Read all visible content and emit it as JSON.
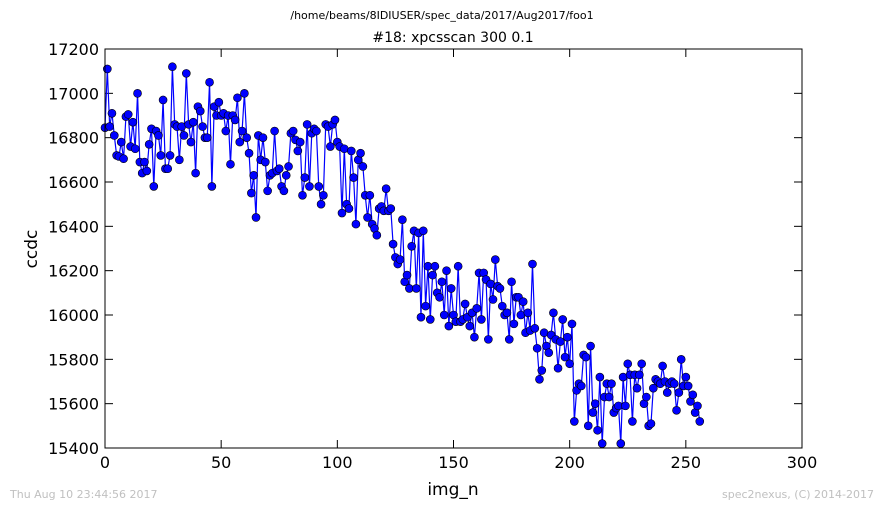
{
  "figure": {
    "suptitle": "/home/beams/8IDIUSER/spec_data/2017/Aug2017/foo1",
    "footer_left": "Thu Aug 10 23:44:56 2017",
    "footer_right": "spec2nexus, (C) 2014-2017",
    "line_color": "#0000ff",
    "marker_color": "#0000ff"
  },
  "chart_data": {
    "type": "line",
    "title": "#18: xpcsscan 300 0.1",
    "xlabel": "img_n",
    "ylabel": "ccdc",
    "xlim": [
      0,
      300
    ],
    "ylim": [
      15400,
      17200
    ],
    "xticks": [
      0,
      50,
      100,
      150,
      200,
      250,
      300
    ],
    "yticks": [
      15400,
      15600,
      15800,
      16000,
      16200,
      16400,
      16600,
      16800,
      17000,
      17200
    ],
    "grid": false,
    "series": [
      {
        "name": "",
        "values": [
          16845,
          17110,
          16850,
          16910,
          16810,
          16720,
          16715,
          16780,
          16705,
          16895,
          16905,
          16760,
          16870,
          16750,
          17000,
          16690,
          16640,
          16690,
          16650,
          16770,
          16840,
          16580,
          16830,
          16810,
          16720,
          16970,
          16660,
          16660,
          16720,
          17120,
          16860,
          16850,
          16700,
          16850,
          16810,
          17090,
          16860,
          16780,
          16870,
          16640,
          16940,
          16920,
          16850,
          16800,
          16800,
          17050,
          16580,
          16940,
          16900,
          16960,
          16900,
          16910,
          16830,
          16900,
          16680,
          16900,
          16880,
          16980,
          16780,
          16830,
          17000,
          16800,
          16730,
          16550,
          16630,
          16440,
          16810,
          16700,
          16800,
          16690,
          16560,
          16630,
          16640,
          16830,
          16650,
          16660,
          16580,
          16560,
          16630,
          16670,
          16820,
          16830,
          16790,
          16740,
          16780,
          16540,
          16620,
          16860,
          16580,
          16820,
          16840,
          16830,
          16580,
          16500,
          16540,
          16860,
          16850,
          16760,
          16860,
          16880,
          16780,
          16760,
          16460,
          16750,
          16500,
          16480,
          16740,
          16620,
          16410,
          16700,
          16730,
          16670,
          16540,
          16440,
          16540,
          16410,
          16390,
          16360,
          16480,
          16490,
          16470,
          16570,
          16470,
          16480,
          16320,
          16260,
          16230,
          16250,
          16430,
          16150,
          16180,
          16120,
          16310,
          16380,
          16120,
          16370,
          15990,
          16380,
          16040,
          16220,
          15980,
          16180,
          16220,
          16100,
          16080,
          16150,
          16000,
          16200,
          15950,
          16120,
          16000,
          15970,
          16220,
          15970,
          15980,
          16050,
          15990,
          15950,
          16010,
          15900,
          16030,
          16190,
          15980,
          16190,
          16160,
          15890,
          16140,
          16070,
          16250,
          16130,
          16120,
          16040,
          16000,
          16010,
          15890,
          16150,
          15960,
          16080,
          16080,
          16000,
          16060,
          15920,
          16010,
          15930,
          16230,
          15940,
          15850,
          15710,
          15750,
          15920,
          15860,
          15830,
          15910,
          16010,
          15890,
          15760,
          15880,
          15980,
          15810,
          15900,
          15780,
          15960,
          15520,
          15660,
          15690,
          15680,
          15820,
          15810,
          15500,
          15860,
          15560,
          15600,
          15480,
          15720,
          15420,
          15630,
          15690,
          15630,
          15690,
          15560,
          15580,
          15590,
          15420,
          15720,
          15590,
          15780,
          15730,
          15520,
          15730,
          15670,
          15730,
          15780,
          15600,
          15630,
          15500,
          15510,
          15670,
          15710,
          15700,
          15690,
          15770,
          15700,
          15650,
          15690,
          15700,
          15690,
          15570,
          15650,
          15800,
          15680,
          15720,
          15680,
          15610,
          15640,
          15560,
          15590,
          15520
        ]
      }
    ]
  }
}
